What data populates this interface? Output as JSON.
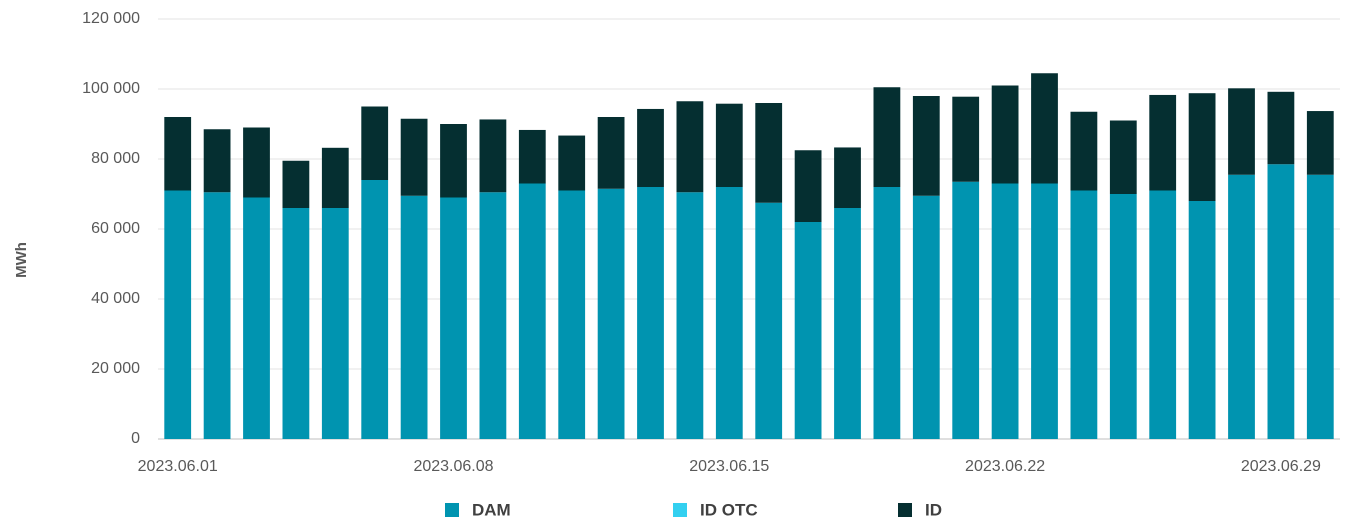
{
  "chart_data": {
    "type": "stacked_bar",
    "y_label": "MWh",
    "categories": [
      "2023.06.01",
      null,
      null,
      null,
      null,
      null,
      null,
      "2023.06.08",
      null,
      null,
      null,
      null,
      null,
      null,
      "2023.06.15",
      null,
      null,
      null,
      null,
      null,
      null,
      "2023.06.22",
      null,
      null,
      null,
      null,
      null,
      null,
      "2023.06.29",
      null
    ],
    "series": [
      {
        "name": "DAM",
        "color": "#0094b0",
        "values": [
          71000,
          70500,
          69000,
          66000,
          66000,
          74000,
          69500,
          69000,
          70500,
          73000,
          71000,
          71500,
          72000,
          70500,
          72000,
          67500,
          62000,
          66000,
          72000,
          69500,
          73500,
          73000,
          73000,
          71000,
          70000,
          71000,
          68000,
          75500,
          78500,
          75500
        ]
      },
      {
        "name": "ID OTC",
        "color": "#33d0f0",
        "values": [
          0,
          0,
          0,
          0,
          0,
          0,
          0,
          0,
          0,
          0,
          0,
          0,
          0,
          0,
          0,
          0,
          0,
          0,
          0,
          0,
          0,
          0,
          0,
          0,
          0,
          0,
          0,
          0,
          0,
          0
        ]
      },
      {
        "name": "ID",
        "color": "#052f31",
        "values": [
          21000,
          18000,
          20000,
          13500,
          17200,
          21000,
          22000,
          21000,
          20800,
          15300,
          15700,
          20500,
          22300,
          26000,
          23800,
          28500,
          20500,
          17300,
          28500,
          28500,
          24300,
          28000,
          31500,
          22500,
          21000,
          27300,
          30800,
          24700,
          20700,
          18200
        ]
      }
    ],
    "ylim": [
      0,
      120000
    ],
    "yticks": [
      {
        "value": 0,
        "label": "0"
      },
      {
        "value": 20000,
        "label": "20 000"
      },
      {
        "value": 40000,
        "label": "40 000"
      },
      {
        "value": 60000,
        "label": "60 000"
      },
      {
        "value": 80000,
        "label": "80 000"
      },
      {
        "value": 100000,
        "label": "100 000"
      },
      {
        "value": 120000,
        "label": "120 000"
      }
    ],
    "grid": true,
    "legend": "bottom"
  }
}
